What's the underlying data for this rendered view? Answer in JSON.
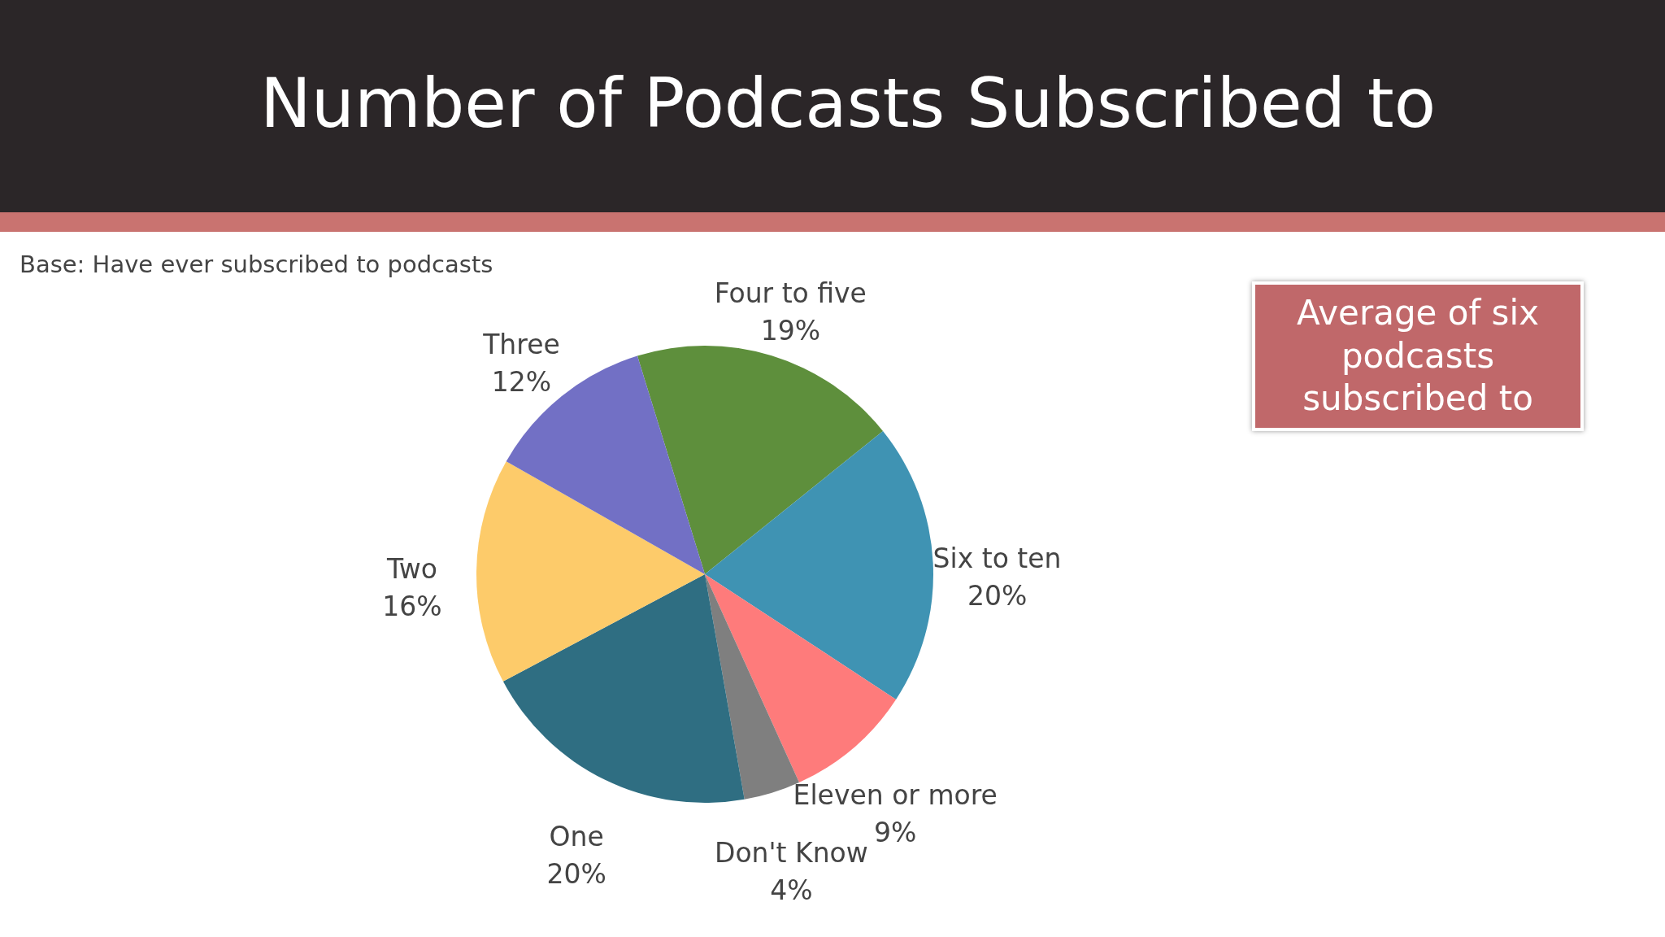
{
  "chart_data": {
    "type": "pie",
    "title": "Number of Podcasts Subscribed to",
    "subtitle": "Base: Have ever subscribed to podcasts",
    "categories": [
      "Four to five",
      "Six to ten",
      "Eleven or more",
      "Don't Know",
      "One",
      "Two",
      "Three"
    ],
    "values": [
      19,
      20,
      9,
      4,
      20,
      16,
      12
    ],
    "value_labels": [
      "19%",
      "20%",
      "9%",
      "4%",
      "20%",
      "16%",
      "12%"
    ],
    "colors": [
      "#5e8f3c",
      "#3f93b3",
      "#fe7b7b",
      "#7f7f7f",
      "#2f6e82",
      "#fdcb6a",
      "#7270c5"
    ],
    "annotations": [
      "Average of six podcasts subscribed to"
    ],
    "legend": false
  }
}
